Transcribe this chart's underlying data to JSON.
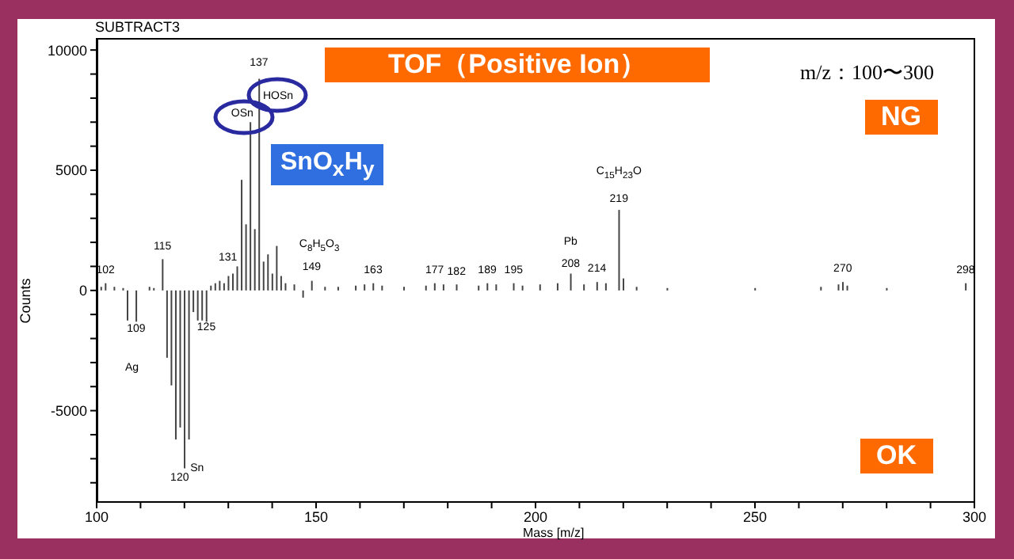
{
  "chart_data": {
    "type": "bar",
    "xlabel": "Mass [m/z]",
    "ylabel": "Counts",
    "x": [
      101,
      102,
      104,
      106,
      107,
      109,
      112,
      113,
      115,
      116,
      117,
      118,
      119,
      120,
      121,
      122,
      123,
      124,
      125,
      126,
      127,
      128,
      129,
      130,
      131,
      132,
      133,
      134,
      135,
      136,
      137,
      138,
      139,
      140,
      141,
      142,
      143,
      145,
      147,
      149,
      152,
      155,
      159,
      161,
      163,
      165,
      170,
      175,
      177,
      179,
      182,
      187,
      189,
      191,
      195,
      197,
      201,
      205,
      208,
      211,
      214,
      216,
      219,
      220,
      223,
      230,
      250,
      265,
      269,
      270,
      271,
      280,
      298
    ],
    "series": [
      {
        "color": "#444444",
        "values": [
          150,
          300,
          150,
          100,
          -1250,
          -1300,
          150,
          100,
          1300,
          -2800,
          -3950,
          -6200,
          -5700,
          -7400,
          -6200,
          -900,
          -1250,
          -1250,
          -1300,
          200,
          300,
          400,
          300,
          600,
          700,
          1000,
          4600,
          2750,
          7000,
          2550,
          8800,
          1200,
          1500,
          700,
          1850,
          600,
          300,
          250,
          -300,
          400,
          150,
          150,
          200,
          250,
          300,
          200,
          150,
          200,
          300,
          250,
          250,
          200,
          300,
          250,
          300,
          200,
          250,
          300,
          700,
          250,
          350,
          300,
          3350,
          500,
          150,
          100,
          100,
          150,
          250,
          350,
          200,
          100,
          300
        ]
      }
    ],
    "xlim": [
      100,
      300
    ],
    "xticks": [
      100,
      {
        "value": 110,
        "label": null
      },
      {
        "value": 120,
        "label": null
      },
      {
        "value": 130,
        "label": null
      },
      {
        "value": 140,
        "label": null
      },
      150,
      {
        "value": 160,
        "label": null
      },
      {
        "value": 170,
        "label": null
      },
      {
        "value": 180,
        "label": null
      },
      {
        "value": 190,
        "label": null
      },
      200,
      {
        "value": 210,
        "label": null
      },
      {
        "value": 220,
        "label": null
      },
      {
        "value": 230,
        "label": null
      },
      {
        "value": 240,
        "label": null
      },
      250,
      {
        "value": 260,
        "label": null
      },
      {
        "value": 270,
        "label": null
      },
      {
        "value": 280,
        "label": null
      },
      {
        "value": 290,
        "label": null
      },
      300
    ],
    "ylim": [
      -8800,
      10500
    ],
    "yticks": [
      {
        "value": -8000,
        "label": null
      },
      {
        "value": -7000,
        "label": null
      },
      {
        "value": -6000,
        "label": null
      },
      -5000,
      {
        "value": -4000,
        "label": null
      },
      {
        "value": -3000,
        "label": null
      },
      {
        "value": -2000,
        "label": null
      },
      {
        "value": -1000,
        "label": null
      },
      0,
      {
        "value": 1000,
        "label": null
      },
      {
        "value": 2000,
        "label": null
      },
      {
        "value": 3000,
        "label": null
      },
      {
        "value": 4000,
        "label": null
      },
      5000,
      {
        "value": 6000,
        "label": null
      },
      {
        "value": 7000,
        "label": null
      },
      {
        "value": 8000,
        "label": null
      },
      {
        "value": 9000,
        "label": null
      },
      10000
    ],
    "grid": false,
    "legend": false,
    "annotations": [
      "SUBTRACT3",
      "TOF（Positive Ion）",
      "m/z：100〜300",
      "NG",
      "SnO$_{x}$H$_{y}$",
      "OK",
      {
        "text": "102",
        "x": 102,
        "y": 300
      },
      {
        "text": "115",
        "x": 115,
        "y": 1300
      },
      {
        "text": "131",
        "x": 131,
        "y": 700
      },
      {
        "text": "137",
        "x": 137,
        "y": 8800
      },
      {
        "text": "OSn",
        "x": 135,
        "y": 7000
      },
      {
        "text": "HOSn",
        "x": 137,
        "y": 8800
      },
      {
        "text": "C$_{8}$H$_{5}$O$_{3}$",
        "x": 141,
        "y": 1850
      },
      {
        "text": "149",
        "x": 149,
        "y": 400
      },
      {
        "text": "163",
        "x": 163,
        "y": 300
      },
      {
        "text": "177",
        "x": 177,
        "y": 300
      },
      {
        "text": "182",
        "x": 182,
        "y": 250
      },
      {
        "text": "189",
        "x": 189,
        "y": 300
      },
      {
        "text": "195",
        "x": 195,
        "y": 300
      },
      {
        "text": "Pb",
        "x": 208,
        "y": 700
      },
      {
        "text": "208",
        "x": 208,
        "y": 700
      },
      {
        "text": "214",
        "x": 214,
        "y": 350
      },
      {
        "text": "219",
        "x": 219,
        "y": 3350
      },
      {
        "text": "C$_{15}$H$_{23}$O",
        "x": 219,
        "y": 3350
      },
      {
        "text": "270",
        "x": 270,
        "y": 350
      },
      {
        "text": "298",
        "x": 298,
        "y": 300
      },
      {
        "text": "109",
        "x": 109,
        "y": -1300
      },
      {
        "text": "125",
        "x": 125,
        "y": -1300
      },
      "Ag",
      {
        "text": "120",
        "x": 120,
        "y": -7400
      },
      {
        "text": "Sn",
        "x": 120,
        "y": -7400
      }
    ]
  }
}
